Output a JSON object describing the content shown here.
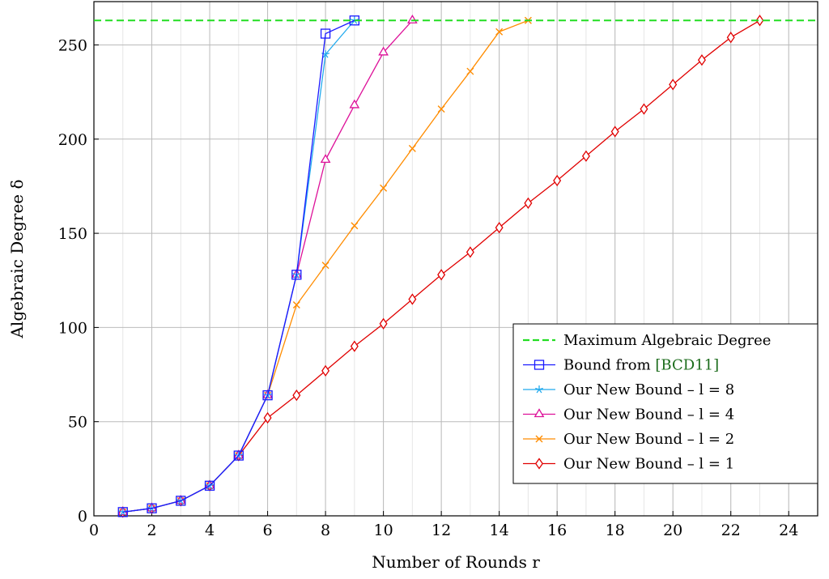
{
  "chart_data": {
    "type": "line",
    "xlabel": "Number of Rounds r",
    "ylabel": "Algebraic Degree δ",
    "xlim": [
      0,
      25
    ],
    "ylim": [
      0,
      273
    ],
    "xticks": [
      0,
      2,
      4,
      6,
      8,
      10,
      12,
      14,
      16,
      18,
      20,
      22,
      24
    ],
    "yticks": [
      0,
      50,
      100,
      150,
      200,
      250
    ],
    "grid": true,
    "legend_position": "bottom-right",
    "max_degree": 263,
    "series": [
      {
        "name": "Maximum Algebraic Degree",
        "color": "#22dd22",
        "style": "dashed",
        "marker": "none",
        "x": [
          0,
          25
        ],
        "y": [
          263,
          263
        ]
      },
      {
        "name": "Bound from [BCD11]",
        "name_prefix": "Bound from ",
        "name_cite": "[BCD11]",
        "color": "#1a1aff",
        "style": "solid",
        "marker": "square",
        "x": [
          1,
          2,
          3,
          4,
          5,
          6,
          7,
          8,
          9
        ],
        "y": [
          2,
          4,
          8,
          16,
          32,
          64,
          128,
          256,
          263
        ]
      },
      {
        "name": "Our New Bound – l = 8",
        "color": "#22aaee",
        "style": "solid",
        "marker": "star",
        "x": [
          1,
          2,
          3,
          4,
          5,
          6,
          7,
          8,
          9
        ],
        "y": [
          2,
          4,
          8,
          16,
          32,
          64,
          128,
          245,
          263
        ]
      },
      {
        "name": "Our New Bound – l = 4",
        "color": "#dd1199",
        "style": "solid",
        "marker": "triangle",
        "x": [
          1,
          2,
          3,
          4,
          5,
          6,
          7,
          8,
          9,
          10,
          11
        ],
        "y": [
          2,
          4,
          8,
          16,
          32,
          64,
          128,
          189,
          218,
          246,
          263
        ]
      },
      {
        "name": "Our New Bound – l = 2",
        "color": "#ff8c00",
        "style": "solid",
        "marker": "x",
        "x": [
          1,
          2,
          3,
          4,
          5,
          6,
          7,
          8,
          9,
          10,
          11,
          12,
          13,
          14,
          15
        ],
        "y": [
          2,
          4,
          8,
          16,
          32,
          64,
          112,
          133,
          154,
          174,
          195,
          216,
          236,
          257,
          263
        ]
      },
      {
        "name": "Our New Bound – l = 1",
        "color": "#e00000",
        "style": "solid",
        "marker": "diamond",
        "x": [
          1,
          2,
          3,
          4,
          5,
          6,
          7,
          8,
          9,
          10,
          11,
          12,
          13,
          14,
          15,
          16,
          17,
          18,
          19,
          20,
          21,
          22,
          23
        ],
        "y": [
          2,
          4,
          8,
          16,
          32,
          52,
          64,
          77,
          90,
          102,
          115,
          128,
          140,
          153,
          166,
          178,
          191,
          204,
          216,
          229,
          242,
          254,
          263
        ]
      }
    ]
  }
}
